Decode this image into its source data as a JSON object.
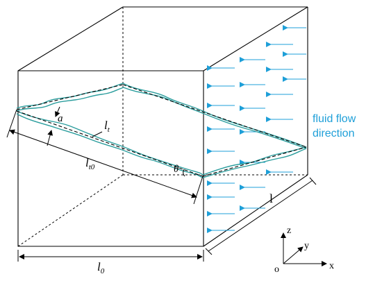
{
  "labels": {
    "aperture": "a",
    "tortuous_length": "l",
    "tortuous_length_sub": "t",
    "straight_length": "l",
    "straight_length_sub": "t0",
    "angle": "θ",
    "length": "l",
    "width": "l",
    "width_sub": "0",
    "flow_line1": "fluid flow",
    "flow_line2": "direction"
  },
  "axes": {
    "origin": "o",
    "x": "x",
    "y": "y",
    "z": "z"
  },
  "colors": {
    "outline": "#000000",
    "fracture": "#2a9d9d",
    "flow_arrow": "#1e9fd8",
    "dashed": "#000000"
  }
}
